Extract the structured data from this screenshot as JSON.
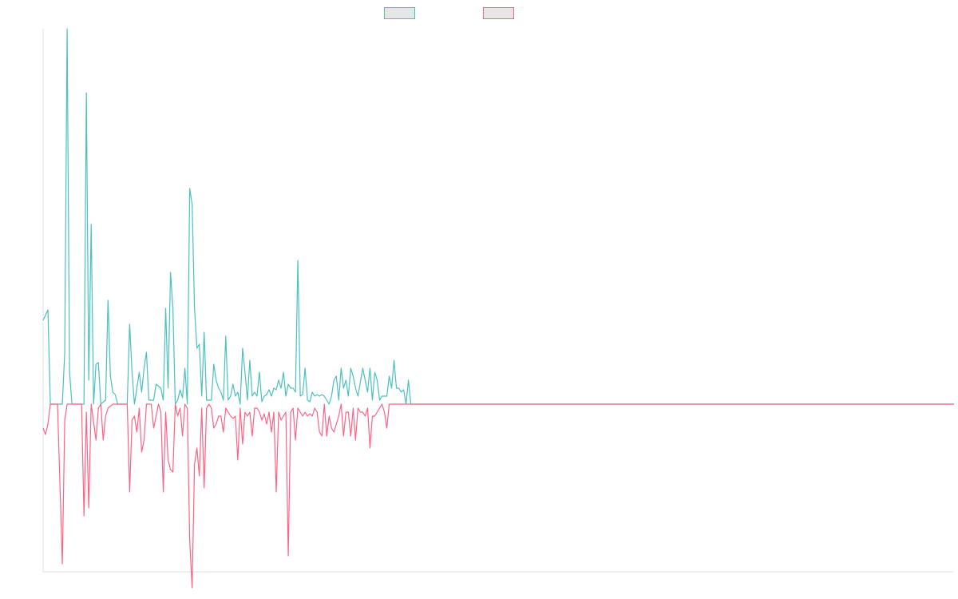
{
  "colors": {
    "positive": "#4bc0c0",
    "negative": "#ff6384",
    "legend_fill": "#e6e6e6",
    "axis": "#e0e0e0"
  },
  "legend": {
    "entries": [
      {
        "color": "#4bc0c0",
        "label": ""
      },
      {
        "color": "#ff6384",
        "label": ""
      }
    ],
    "position": "top-center"
  },
  "chart_data": {
    "type": "line",
    "title": "",
    "xlabel": "",
    "ylabel": "",
    "grid": false,
    "x_count": 380,
    "ylim": [
      -210,
      470
    ],
    "series": [
      {
        "color": "#4bc0c0",
        "points": [
          [
            0,
            105
          ],
          [
            2,
            118
          ],
          [
            3,
            0
          ],
          [
            8,
            0
          ],
          [
            9,
            65
          ],
          [
            10,
            470
          ],
          [
            11,
            40
          ],
          [
            12,
            0
          ],
          [
            17,
            0
          ],
          [
            18,
            390
          ],
          [
            19,
            30
          ],
          [
            20,
            225
          ],
          [
            21,
            0
          ],
          [
            22,
            50
          ],
          [
            23,
            52
          ],
          [
            24,
            0
          ],
          [
            26,
            5
          ],
          [
            27,
            130
          ],
          [
            28,
            35
          ],
          [
            29,
            15
          ],
          [
            30,
            12
          ],
          [
            31,
            0
          ],
          [
            35,
            0
          ],
          [
            36,
            100
          ],
          [
            37,
            40
          ],
          [
            38,
            0
          ],
          [
            40,
            40
          ],
          [
            41,
            15
          ],
          [
            42,
            45
          ],
          [
            43,
            65
          ],
          [
            44,
            5
          ],
          [
            46,
            5
          ],
          [
            47,
            25
          ],
          [
            49,
            20
          ],
          [
            50,
            5
          ],
          [
            51,
            120
          ],
          [
            52,
            20
          ],
          [
            53,
            165
          ],
          [
            54,
            120
          ],
          [
            55,
            0
          ],
          [
            56,
            5
          ],
          [
            57,
            18
          ],
          [
            58,
            8
          ],
          [
            59,
            45
          ],
          [
            60,
            0
          ],
          [
            61,
            270
          ],
          [
            62,
            250
          ],
          [
            63,
            120
          ],
          [
            64,
            70
          ],
          [
            65,
            75
          ],
          [
            66,
            10
          ],
          [
            67,
            90
          ],
          [
            68,
            5
          ],
          [
            70,
            5
          ],
          [
            71,
            50
          ],
          [
            72,
            30
          ],
          [
            73,
            20
          ],
          [
            74,
            15
          ],
          [
            75,
            5
          ],
          [
            76,
            85
          ],
          [
            77,
            5
          ],
          [
            78,
            10
          ],
          [
            79,
            25
          ],
          [
            80,
            10
          ],
          [
            81,
            15
          ],
          [
            82,
            0
          ],
          [
            83,
            70
          ],
          [
            84,
            40
          ],
          [
            85,
            5
          ],
          [
            86,
            55
          ],
          [
            87,
            10
          ],
          [
            88,
            15
          ],
          [
            89,
            10
          ],
          [
            90,
            40
          ],
          [
            91,
            3
          ],
          [
            92,
            10
          ],
          [
            93,
            12
          ],
          [
            94,
            18
          ],
          [
            95,
            10
          ],
          [
            96,
            20
          ],
          [
            97,
            18
          ],
          [
            98,
            30
          ],
          [
            99,
            20
          ],
          [
            100,
            40
          ],
          [
            101,
            10
          ],
          [
            102,
            25
          ],
          [
            103,
            20
          ],
          [
            104,
            20
          ],
          [
            105,
            15
          ],
          [
            106,
            180
          ],
          [
            107,
            10
          ],
          [
            108,
            12
          ],
          [
            109,
            45
          ],
          [
            110,
            5
          ],
          [
            111,
            3
          ],
          [
            112,
            15
          ],
          [
            113,
            10
          ],
          [
            114,
            12
          ],
          [
            115,
            10
          ],
          [
            116,
            12
          ],
          [
            117,
            10
          ],
          [
            118,
            5
          ],
          [
            119,
            0
          ],
          [
            120,
            10
          ],
          [
            121,
            30
          ],
          [
            122,
            35
          ],
          [
            123,
            5
          ],
          [
            124,
            45
          ],
          [
            125,
            20
          ],
          [
            126,
            30
          ],
          [
            127,
            10
          ],
          [
            128,
            45
          ],
          [
            129,
            35
          ],
          [
            130,
            20
          ],
          [
            131,
            10
          ],
          [
            133,
            45
          ],
          [
            134,
            30
          ],
          [
            135,
            15
          ],
          [
            136,
            45
          ],
          [
            137,
            5
          ],
          [
            138,
            40
          ],
          [
            139,
            30
          ],
          [
            140,
            5
          ],
          [
            141,
            10
          ],
          [
            142,
            10
          ],
          [
            143,
            10
          ],
          [
            144,
            35
          ],
          [
            145,
            20
          ],
          [
            146,
            55
          ],
          [
            147,
            20
          ],
          [
            148,
            20
          ],
          [
            149,
            15
          ],
          [
            150,
            18
          ],
          [
            151,
            0
          ],
          [
            152,
            30
          ],
          [
            153,
            0
          ],
          [
            379,
            0
          ]
        ]
      },
      {
        "color": "#ff6384",
        "points": [
          [
            0,
            -30
          ],
          [
            1,
            -38
          ],
          [
            2,
            -25
          ],
          [
            3,
            0
          ],
          [
            6,
            0
          ],
          [
            8,
            -200
          ],
          [
            9,
            -20
          ],
          [
            10,
            0
          ],
          [
            16,
            0
          ],
          [
            17,
            -140
          ],
          [
            18,
            -10
          ],
          [
            19,
            -130
          ],
          [
            20,
            0
          ],
          [
            22,
            -45
          ],
          [
            23,
            -5
          ],
          [
            24,
            0
          ],
          [
            25,
            -45
          ],
          [
            26,
            -15
          ],
          [
            27,
            -5
          ],
          [
            29,
            0
          ],
          [
            35,
            0
          ],
          [
            36,
            -110
          ],
          [
            37,
            -20
          ],
          [
            38,
            -15
          ],
          [
            39,
            -35
          ],
          [
            40,
            -5
          ],
          [
            41,
            -60
          ],
          [
            42,
            -45
          ],
          [
            43,
            0
          ],
          [
            45,
            0
          ],
          [
            46,
            -30
          ],
          [
            47,
            -15
          ],
          [
            48,
            0
          ],
          [
            49,
            -10
          ],
          [
            50,
            -110
          ],
          [
            51,
            -10
          ],
          [
            52,
            -70
          ],
          [
            53,
            -82
          ],
          [
            54,
            -85
          ],
          [
            55,
            0
          ],
          [
            56,
            -15
          ],
          [
            57,
            -5
          ],
          [
            58,
            -40
          ],
          [
            59,
            0
          ],
          [
            60,
            -5
          ],
          [
            61,
            -170
          ],
          [
            62,
            -230
          ],
          [
            63,
            -75
          ],
          [
            64,
            -55
          ],
          [
            65,
            -90
          ],
          [
            66,
            -5
          ],
          [
            67,
            -105
          ],
          [
            68,
            -5
          ],
          [
            69,
            0
          ],
          [
            70,
            -5
          ],
          [
            71,
            -30
          ],
          [
            72,
            -25
          ],
          [
            73,
            -15
          ],
          [
            74,
            -15
          ],
          [
            75,
            -35
          ],
          [
            76,
            -5
          ],
          [
            77,
            -10
          ],
          [
            78,
            -15
          ],
          [
            79,
            -18
          ],
          [
            80,
            -15
          ],
          [
            81,
            -70
          ],
          [
            82,
            -5
          ],
          [
            83,
            -50
          ],
          [
            84,
            -10
          ],
          [
            85,
            -15
          ],
          [
            86,
            -10
          ],
          [
            87,
            -40
          ],
          [
            88,
            -5
          ],
          [
            89,
            -5
          ],
          [
            90,
            -10
          ],
          [
            91,
            -20
          ],
          [
            92,
            -12
          ],
          [
            93,
            -25
          ],
          [
            94,
            -10
          ],
          [
            95,
            -35
          ],
          [
            96,
            -10
          ],
          [
            97,
            -110
          ],
          [
            98,
            -10
          ],
          [
            99,
            -20
          ],
          [
            100,
            -15
          ],
          [
            101,
            -10
          ],
          [
            102,
            -190
          ],
          [
            103,
            -10
          ],
          [
            104,
            -5
          ],
          [
            105,
            -45
          ],
          [
            106,
            -5
          ],
          [
            107,
            -10
          ],
          [
            108,
            -15
          ],
          [
            109,
            -10
          ],
          [
            110,
            -15
          ],
          [
            111,
            -12
          ],
          [
            112,
            -15
          ],
          [
            113,
            -5
          ],
          [
            114,
            -10
          ],
          [
            115,
            -35
          ],
          [
            116,
            -40
          ],
          [
            117,
            0
          ],
          [
            118,
            -40
          ],
          [
            119,
            -15
          ],
          [
            120,
            -30
          ],
          [
            121,
            -35
          ],
          [
            122,
            -25
          ],
          [
            123,
            -15
          ],
          [
            124,
            0
          ],
          [
            125,
            -40
          ],
          [
            126,
            -10
          ],
          [
            127,
            -10
          ],
          [
            128,
            -40
          ],
          [
            129,
            -5
          ],
          [
            130,
            -45
          ],
          [
            131,
            -5
          ],
          [
            132,
            -10
          ],
          [
            133,
            -10
          ],
          [
            134,
            -15
          ],
          [
            135,
            -5
          ],
          [
            136,
            -55
          ],
          [
            137,
            -15
          ],
          [
            138,
            -15
          ],
          [
            139,
            -10
          ],
          [
            140,
            -5
          ],
          [
            141,
            0
          ],
          [
            142,
            -10
          ],
          [
            143,
            -30
          ],
          [
            144,
            0
          ],
          [
            379,
            0
          ]
        ]
      }
    ]
  }
}
